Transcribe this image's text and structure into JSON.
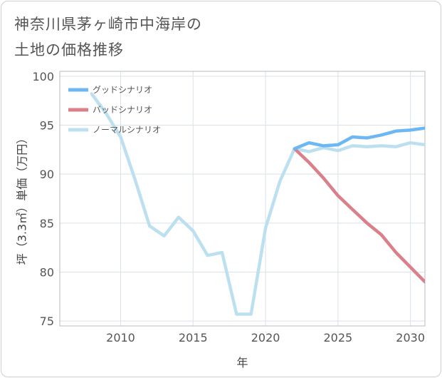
{
  "page": {
    "title_line1": "神奈川県茅ヶ崎市中海岸の",
    "title_line2": "土地の価格推移"
  },
  "chart_data": {
    "type": "line",
    "title": "神奈川県茅ヶ崎市中海岸の土地の価格推移",
    "xlabel": "年",
    "ylabel": "坪（3.3㎡）単価（万円）",
    "xlim": [
      2005.8,
      2031
    ],
    "ylim": [
      74.5,
      100.5
    ],
    "x_ticks": [
      2010,
      2015,
      2020,
      2025,
      2030
    ],
    "y_ticks": [
      75,
      80,
      85,
      90,
      95,
      100
    ],
    "grid": true,
    "legend_position": "top-left",
    "series": [
      {
        "name": "グッドシナリオ",
        "color": "#6db8f2",
        "x": [
          2022,
          2023,
          2024,
          2025,
          2026,
          2027,
          2028,
          2029,
          2030,
          2031
        ],
        "values": [
          92.6,
          93.2,
          92.9,
          93.0,
          93.8,
          93.7,
          94.0,
          94.4,
          94.5,
          94.7
        ]
      },
      {
        "name": "バッドシナリオ",
        "color": "#d9808a",
        "x": [
          2022,
          2023,
          2024,
          2025,
          2026,
          2027,
          2028,
          2029,
          2030,
          2031
        ],
        "values": [
          92.6,
          91.2,
          89.6,
          87.8,
          86.4,
          85.0,
          83.8,
          82.0,
          80.5,
          79.0
        ]
      },
      {
        "name": "ノーマルシナリオ",
        "color": "#bde0f0",
        "x": [
          2008,
          2009,
          2010,
          2011,
          2012,
          2013,
          2014,
          2015,
          2016,
          2017,
          2018,
          2019,
          2020,
          2021,
          2022,
          2023,
          2024,
          2025,
          2026,
          2027,
          2028,
          2029,
          2030,
          2031
        ],
        "values": [
          98.2,
          96.2,
          93.8,
          89.4,
          84.7,
          83.7,
          85.6,
          84.2,
          81.7,
          82.0,
          75.7,
          75.7,
          84.5,
          89.3,
          92.6,
          92.3,
          92.7,
          92.4,
          92.9,
          92.8,
          92.9,
          92.8,
          93.2,
          93.0
        ]
      }
    ]
  }
}
